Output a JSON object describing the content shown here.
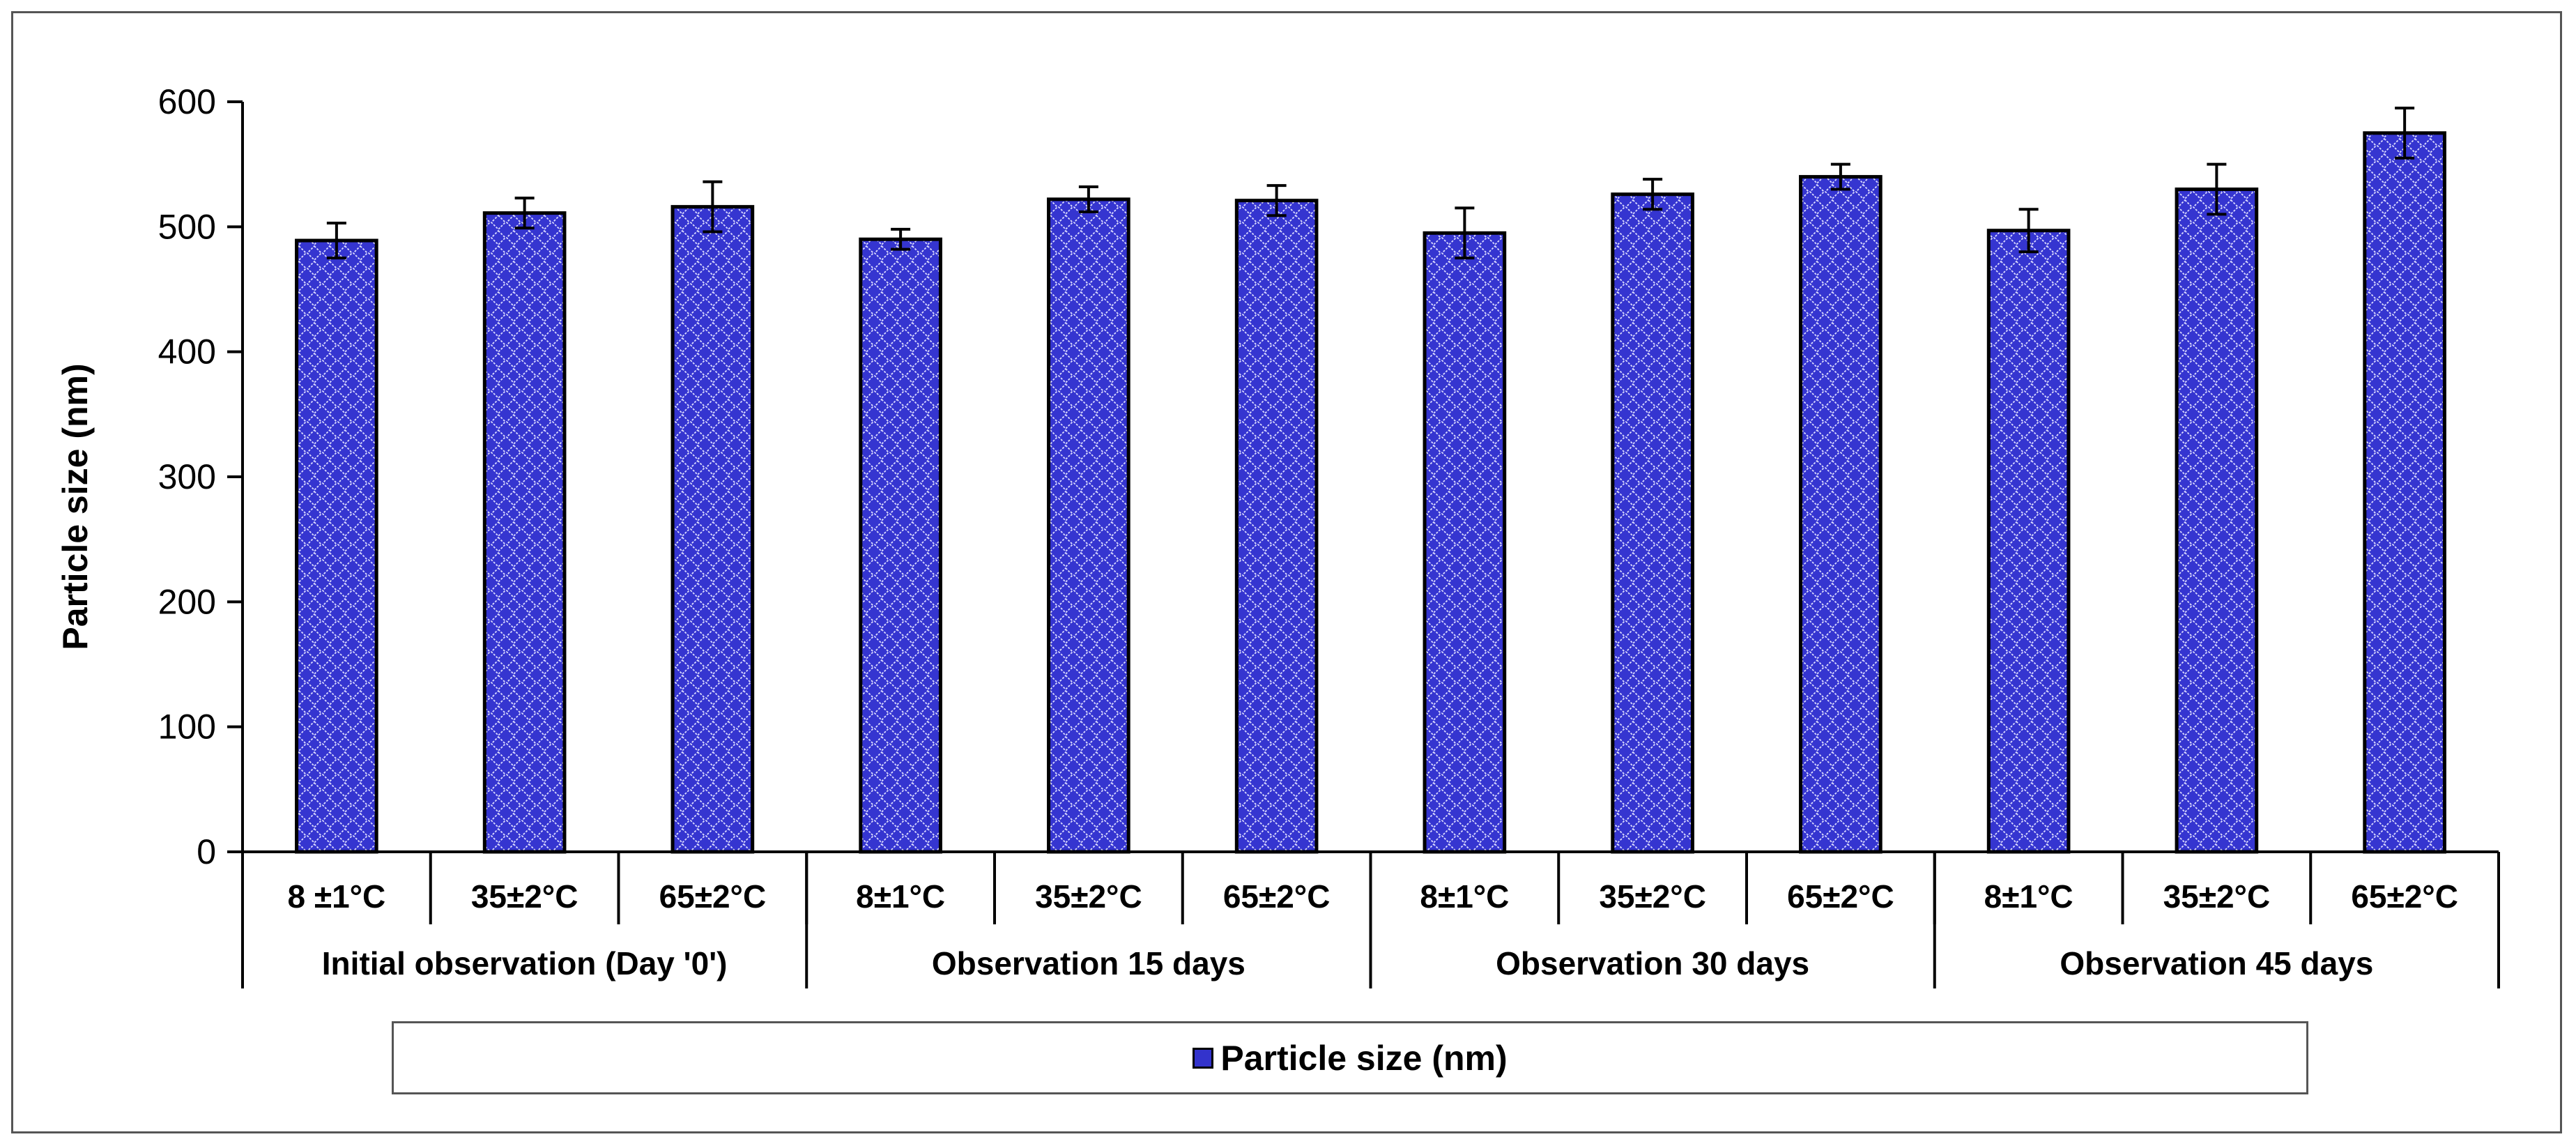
{
  "chart_data": {
    "type": "bar",
    "title": "",
    "xlabel": "",
    "ylabel": "Particle size (nm)",
    "ylim": [
      0,
      600
    ],
    "yticks": [
      0,
      100,
      200,
      300,
      400,
      500,
      600
    ],
    "groups": [
      {
        "label": "Initial observation (Day '0')",
        "categories": [
          "8 ±1°C",
          "35±2°C",
          "65±2°C"
        ]
      },
      {
        "label": "Observation 15 days",
        "categories": [
          "8±1°C",
          "35±2°C",
          "65±2°C"
        ]
      },
      {
        "label": "Observation 30 days",
        "categories": [
          "8±1°C",
          "35±2°C",
          "65±2°C"
        ]
      },
      {
        "label": "Observation 45 days",
        "categories": [
          "8±1°C",
          "35±2°C",
          "65±2°C"
        ]
      }
    ],
    "series": [
      {
        "name": "Particle size (nm)",
        "values": [
          489,
          511,
          516,
          490,
          522,
          521,
          495,
          526,
          540,
          497,
          530,
          575
        ],
        "errors": [
          14,
          12,
          20,
          8,
          10,
          12,
          20,
          12,
          10,
          17,
          20,
          20
        ],
        "color": "#3333cc"
      }
    ],
    "legend": "bottom"
  }
}
